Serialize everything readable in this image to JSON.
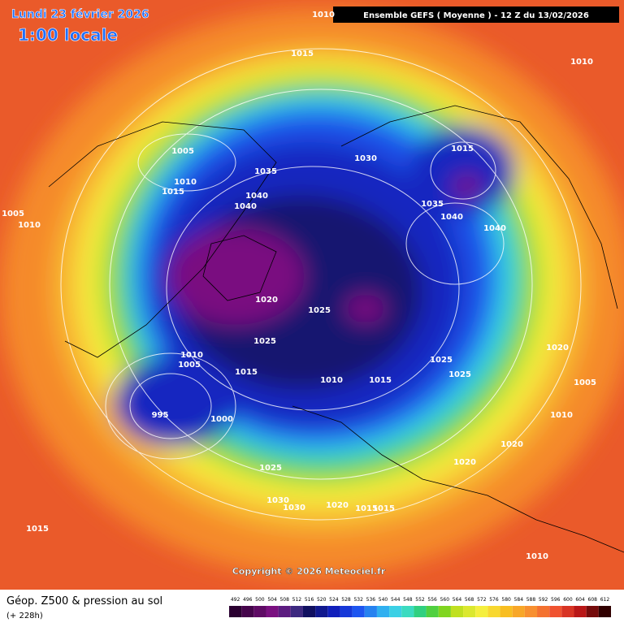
{
  "header": {
    "date": "Lundi 23 février 2026",
    "time": "1:00 locale",
    "model": "Ensemble GEFS  ( Moyenne )  -  12 Z du 13/02/2026"
  },
  "isobar_labels": [
    "1010",
    "1015",
    "1010",
    "1005",
    "1010",
    "1015",
    "1035",
    "1040",
    "1040",
    "1030",
    "1015",
    "1035",
    "1040",
    "1040",
    "1005",
    "1010",
    "1020",
    "1025",
    "1025",
    "1010",
    "1005",
    "1015",
    "1010",
    "1015",
    "1025",
    "1025",
    "1020",
    "1005",
    "1010",
    "995",
    "1000",
    "1020",
    "1020",
    "1025",
    "1030",
    "1030",
    "1020",
    "1015",
    "1015",
    "1015",
    "1010"
  ],
  "copyright": "Copyright © 2026 Meteociel.fr",
  "footer": {
    "title": "Géop. Z500 & pression au sol",
    "lead": "(+ 228h)"
  },
  "scale": [
    492,
    496,
    500,
    504,
    508,
    512,
    516,
    520,
    524,
    528,
    532,
    536,
    540,
    544,
    548,
    552,
    556,
    560,
    564,
    568,
    572,
    576,
    580,
    584,
    588,
    592,
    596,
    600,
    604,
    608,
    612
  ]
}
